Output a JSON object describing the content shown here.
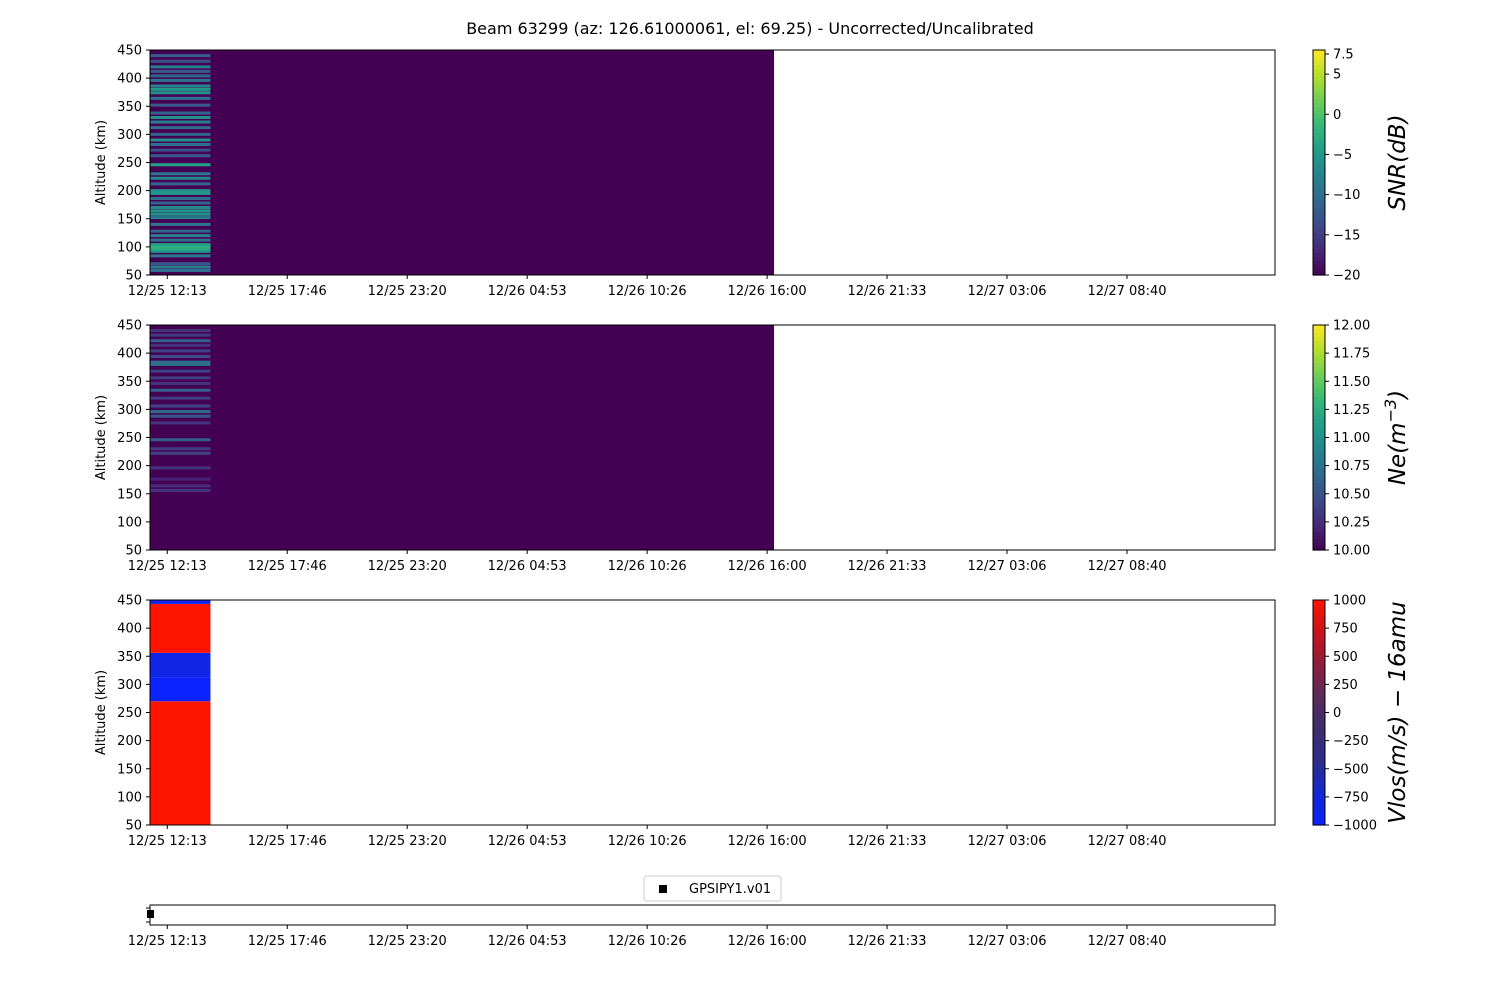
{
  "figure": {
    "title": "Beam 63299 (az: 126.61000061, el: 69.25) - Uncorrected/Uncalibrated"
  },
  "colors": {
    "viridis": [
      "#440154",
      "#482878",
      "#3e4989",
      "#31688e",
      "#26828e",
      "#1f9e89",
      "#35b779",
      "#6ece58",
      "#b5de2b",
      "#fde725"
    ],
    "bwr_custom": [
      "#0a23ff",
      "#1428d2",
      "#2d2d8c",
      "#3c2d6e",
      "#5a2a5a",
      "#8c1e3c",
      "#c8141e",
      "#ff1400"
    ],
    "legend_marker": "#000000"
  },
  "chart_data": [
    {
      "id": "snr",
      "type": "heatmap",
      "ylabel": "Altitude (km)",
      "ylim": [
        50,
        450
      ],
      "yticks": [
        "50",
        "100",
        "150",
        "200",
        "250",
        "300",
        "350",
        "400",
        "450"
      ],
      "xticks": [
        "12/25 12:13",
        "12/25 17:46",
        "12/25 23:20",
        "12/26 04:53",
        "12/26 10:26",
        "12/26 16:00",
        "12/26 21:33",
        "12/27 03:06",
        "12/27 08:40"
      ],
      "xlim_hours": [
        -0.8,
        51.3
      ],
      "data_extent_hours": [
        -0.8,
        28.1
      ],
      "colorbar": {
        "label": "SNR(dB)",
        "cmap": "viridis",
        "vmin": -20,
        "vmax": 8,
        "ticks": [
          "7.5",
          "5",
          "0",
          "−5",
          "−10",
          "−15",
          "−20"
        ],
        "tick_values": [
          7.5,
          5,
          0,
          -5,
          -10,
          -15,
          -20
        ]
      },
      "background_value": -20,
      "first_column": {
        "x_hours": [
          -0.8,
          2.0
        ],
        "bands": [
          {
            "alt": 58,
            "value": -10
          },
          {
            "alt": 64,
            "value": -8
          },
          {
            "alt": 70,
            "value": -12
          },
          {
            "alt": 84,
            "value": -9
          },
          {
            "alt": 92,
            "value": -6
          },
          {
            "alt": 96,
            "value": -3
          },
          {
            "alt": 100,
            "value": -2
          },
          {
            "alt": 104,
            "value": -4
          },
          {
            "alt": 112,
            "value": -10
          },
          {
            "alt": 120,
            "value": -8
          },
          {
            "alt": 128,
            "value": -11
          },
          {
            "alt": 140,
            "value": -9
          },
          {
            "alt": 152,
            "value": -8
          },
          {
            "alt": 158,
            "value": -6
          },
          {
            "alt": 164,
            "value": -5
          },
          {
            "alt": 170,
            "value": -7
          },
          {
            "alt": 178,
            "value": -11
          },
          {
            "alt": 186,
            "value": -10
          },
          {
            "alt": 195,
            "value": -5
          },
          {
            "alt": 200,
            "value": -6
          },
          {
            "alt": 212,
            "value": -11
          },
          {
            "alt": 222,
            "value": -7
          },
          {
            "alt": 230,
            "value": -9
          },
          {
            "alt": 246,
            "value": -4
          },
          {
            "alt": 262,
            "value": -12
          },
          {
            "alt": 272,
            "value": -13
          },
          {
            "alt": 282,
            "value": -10
          },
          {
            "alt": 290,
            "value": -6
          },
          {
            "alt": 300,
            "value": -11
          },
          {
            "alt": 312,
            "value": -10
          },
          {
            "alt": 322,
            "value": -8
          },
          {
            "alt": 330,
            "value": -6
          },
          {
            "alt": 338,
            "value": -11
          },
          {
            "alt": 352,
            "value": -12
          },
          {
            "alt": 364,
            "value": -10
          },
          {
            "alt": 374,
            "value": -6
          },
          {
            "alt": 380,
            "value": -5
          },
          {
            "alt": 386,
            "value": -7
          },
          {
            "alt": 396,
            "value": -9
          },
          {
            "alt": 404,
            "value": -11
          },
          {
            "alt": 412,
            "value": -12
          },
          {
            "alt": 420,
            "value": -8
          },
          {
            "alt": 430,
            "value": -13
          },
          {
            "alt": 440,
            "value": -12
          }
        ]
      }
    },
    {
      "id": "ne",
      "type": "heatmap",
      "ylabel": "Altitude (km)",
      "ylim": [
        50,
        450
      ],
      "yticks": [
        "50",
        "100",
        "150",
        "200",
        "250",
        "300",
        "350",
        "400",
        "450"
      ],
      "xticks": [
        "12/25 12:13",
        "12/25 17:46",
        "12/25 23:20",
        "12/26 04:53",
        "12/26 10:26",
        "12/26 16:00",
        "12/26 21:33",
        "12/27 03:06",
        "12/27 08:40"
      ],
      "xlim_hours": [
        -0.8,
        51.3
      ],
      "data_extent_hours": [
        -0.8,
        28.1
      ],
      "colorbar": {
        "label": "Ne(m^-3)",
        "cmap": "viridis",
        "vmin": 10.0,
        "vmax": 12.0,
        "ticks": [
          "12.00",
          "11.75",
          "11.50",
          "11.25",
          "11.00",
          "10.75",
          "10.50",
          "10.25",
          "10.00"
        ],
        "tick_values": [
          12.0,
          11.75,
          11.5,
          11.25,
          11.0,
          10.75,
          10.5,
          10.25,
          10.0
        ]
      },
      "background_value": 10.0,
      "first_column": {
        "x_hours": [
          -0.8,
          2.0
        ],
        "bands": [
          {
            "alt": 156,
            "value": 10.3
          },
          {
            "alt": 164,
            "value": 10.25
          },
          {
            "alt": 176,
            "value": 10.2
          },
          {
            "alt": 196,
            "value": 10.3
          },
          {
            "alt": 222,
            "value": 10.4
          },
          {
            "alt": 230,
            "value": 10.35
          },
          {
            "alt": 246,
            "value": 10.6
          },
          {
            "alt": 276,
            "value": 10.3
          },
          {
            "alt": 288,
            "value": 10.55
          },
          {
            "alt": 296,
            "value": 10.7
          },
          {
            "alt": 306,
            "value": 10.4
          },
          {
            "alt": 320,
            "value": 10.35
          },
          {
            "alt": 334,
            "value": 10.6
          },
          {
            "alt": 346,
            "value": 10.3
          },
          {
            "alt": 356,
            "value": 10.35
          },
          {
            "alt": 368,
            "value": 10.4
          },
          {
            "alt": 380,
            "value": 10.8
          },
          {
            "alt": 384,
            "value": 10.7
          },
          {
            "alt": 394,
            "value": 10.45
          },
          {
            "alt": 404,
            "value": 10.4
          },
          {
            "alt": 414,
            "value": 10.3
          },
          {
            "alt": 422,
            "value": 10.6
          },
          {
            "alt": 432,
            "value": 10.35
          },
          {
            "alt": 440,
            "value": 10.3
          }
        ]
      }
    },
    {
      "id": "vlos",
      "type": "heatmap",
      "ylabel": "Altitude (km)",
      "ylim": [
        50,
        450
      ],
      "yticks": [
        "50",
        "100",
        "150",
        "200",
        "250",
        "300",
        "350",
        "400",
        "450"
      ],
      "xticks": [
        "12/25 12:13",
        "12/25 17:46",
        "12/25 23:20",
        "12/26 04:53",
        "12/26 10:26",
        "12/26 16:00",
        "12/26 21:33",
        "12/27 03:06",
        "12/27 08:40"
      ],
      "xlim_hours": [
        -0.8,
        51.3
      ],
      "colorbar": {
        "label": "Vlos(m/s) − 16amu",
        "cmap": "bwr_custom",
        "vmin": -1000,
        "vmax": 1000,
        "ticks": [
          "1000",
          "750",
          "500",
          "250",
          "0",
          "−250",
          "−500",
          "−750",
          "−1000"
        ],
        "tick_values": [
          1000,
          750,
          500,
          250,
          0,
          -250,
          -500,
          -750,
          -1000
        ]
      },
      "cells": [
        {
          "x_hours": [
            -0.8,
            2.0
          ],
          "alt": [
            50,
            270
          ],
          "value": 1000
        },
        {
          "x_hours": [
            -0.8,
            2.0
          ],
          "alt": [
            270,
            312
          ],
          "value": -1000
        },
        {
          "x_hours": [
            -0.8,
            2.0
          ],
          "alt": [
            312,
            356
          ],
          "value": -850
        },
        {
          "x_hours": [
            -0.8,
            2.0
          ],
          "alt": [
            356,
            443
          ],
          "value": 1000
        },
        {
          "x_hours": [
            -0.8,
            2.0
          ],
          "alt": [
            443,
            450
          ],
          "value": -900
        }
      ]
    },
    {
      "id": "legend-strip",
      "type": "scatter",
      "xticks": [
        "12/25 12:13",
        "12/25 17:46",
        "12/25 23:20",
        "12/26 04:53",
        "12/26 10:26",
        "12/26 16:00",
        "12/26 21:33",
        "12/27 03:06",
        "12/27 08:40"
      ],
      "xlim_hours": [
        -0.8,
        51.3
      ],
      "legend": [
        "GPSIPY1.v01"
      ],
      "points": [
        {
          "x_hours": 0.0,
          "y": 0
        }
      ]
    }
  ]
}
